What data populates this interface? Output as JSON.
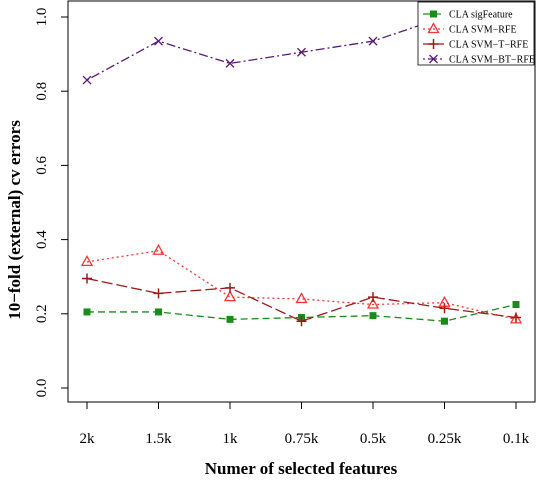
{
  "chart_data": {
    "type": "line",
    "xlabel": "Numer of selected features",
    "ylabel": "10−fold (external) cv errors",
    "categories": [
      "2k",
      "1.5k",
      "1k",
      "0.75k",
      "0.5k",
      "0.25k",
      "0.1k"
    ],
    "yticks": [
      "0.0",
      "0.2",
      "0.4",
      "0.6",
      "0.8",
      "1.0"
    ],
    "ylim": [
      0.0,
      1.0
    ],
    "legend_position": "top-right",
    "grid": false,
    "series": [
      {
        "name": "CLA sigFeature",
        "color": "#1a8c1a",
        "marker": "square",
        "dash": "dashed",
        "values": [
          0.205,
          0.205,
          0.185,
          0.19,
          0.195,
          0.18,
          0.225
        ]
      },
      {
        "name": "CLA SVM−RFE",
        "color": "#ff3333",
        "marker": "triangle",
        "dash": "dotted",
        "values": [
          0.34,
          0.37,
          0.245,
          0.24,
          0.225,
          0.23,
          0.185
        ]
      },
      {
        "name": "CLA SVM−T−RFE",
        "color": "#a01818",
        "marker": "plus",
        "dash": "longdash",
        "values": [
          0.295,
          0.255,
          0.27,
          0.18,
          0.245,
          0.215,
          0.19
        ]
      },
      {
        "name": "CLA SVM−BT−RFE",
        "color": "#5a1a7a",
        "marker": "cross",
        "dash": "dotdash",
        "values": [
          0.83,
          0.935,
          0.875,
          0.905,
          0.935,
          1.0,
          0.965
        ]
      }
    ]
  }
}
